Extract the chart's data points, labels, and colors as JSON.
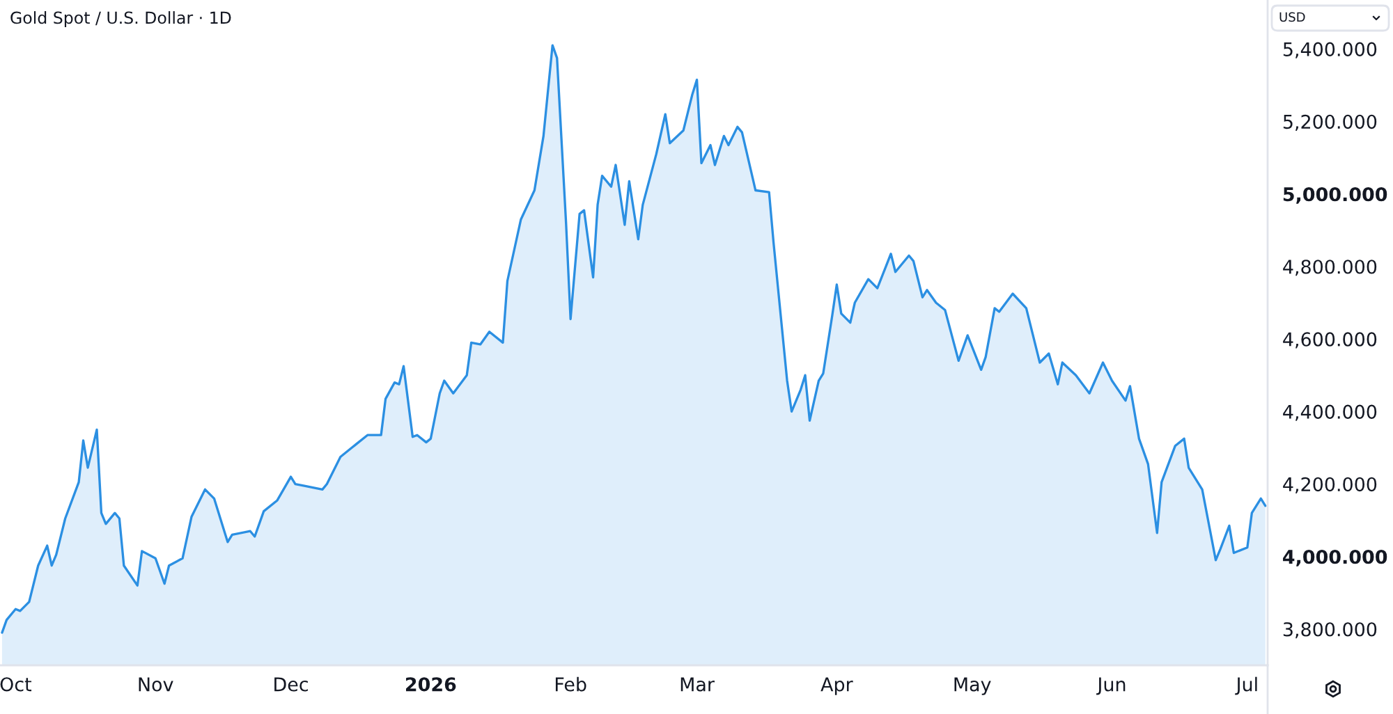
{
  "chart_data": {
    "type": "area",
    "title": "Gold Spot / U.S. Dollar · 1D",
    "ylabel": "USD",
    "color": "#2b8fe2",
    "x": [
      "2025-09-28",
      "2025-09-29",
      "2025-10-01",
      "2025-10-02",
      "2025-10-04",
      "2025-10-06",
      "2025-10-08",
      "2025-10-09",
      "2025-10-10",
      "2025-10-12",
      "2025-10-15",
      "2025-10-16",
      "2025-10-17",
      "2025-10-19",
      "2025-10-20",
      "2025-10-21",
      "2025-10-23",
      "2025-10-24",
      "2025-10-25",
      "2025-10-28",
      "2025-10-29",
      "2025-11-01",
      "2025-11-03",
      "2025-11-04",
      "2025-11-07",
      "2025-11-09",
      "2025-11-12",
      "2025-11-14",
      "2025-11-17",
      "2025-11-18",
      "2025-11-22",
      "2025-11-23",
      "2025-11-25",
      "2025-11-28",
      "2025-12-01",
      "2025-12-02",
      "2025-12-04",
      "2025-12-08",
      "2025-12-09",
      "2025-12-12",
      "2025-12-14",
      "2025-12-18",
      "2025-12-21",
      "2025-12-22",
      "2025-12-24",
      "2025-12-25",
      "2025-12-26",
      "2025-12-28",
      "2025-12-29",
      "2025-12-31",
      "2026-01-01",
      "2026-01-03",
      "2026-01-04",
      "2026-01-06",
      "2026-01-09",
      "2026-01-10",
      "2026-01-12",
      "2026-01-14",
      "2026-01-17",
      "2026-01-18",
      "2026-01-21",
      "2026-01-24",
      "2026-01-26",
      "2026-01-28",
      "2026-01-29",
      "2026-01-31",
      "2026-02-01",
      "2026-02-03",
      "2026-02-04",
      "2026-02-06",
      "2026-02-07",
      "2026-02-08",
      "2026-02-10",
      "2026-02-11",
      "2026-02-13",
      "2026-02-14",
      "2026-02-16",
      "2026-02-17",
      "2026-02-20",
      "2026-02-22",
      "2026-02-23",
      "2026-02-26",
      "2026-02-28",
      "2026-03-01",
      "2026-03-02",
      "2026-03-04",
      "2026-03-05",
      "2026-03-07",
      "2026-03-08",
      "2026-03-10",
      "2026-03-11",
      "2026-03-14",
      "2026-03-17",
      "2026-03-18",
      "2026-03-21",
      "2026-03-22",
      "2026-03-24",
      "2026-03-25",
      "2026-03-26",
      "2026-03-28",
      "2026-03-29",
      "2026-03-31",
      "2026-04-01",
      "2026-04-02",
      "2026-04-04",
      "2026-04-05",
      "2026-04-08",
      "2026-04-10",
      "2026-04-13",
      "2026-04-14",
      "2026-04-17",
      "2026-04-18",
      "2026-04-20",
      "2026-04-21",
      "2026-04-23",
      "2026-04-25",
      "2026-04-28",
      "2026-04-30",
      "2026-05-03",
      "2026-05-04",
      "2026-05-06",
      "2026-05-07",
      "2026-05-10",
      "2026-05-13",
      "2026-05-16",
      "2026-05-18",
      "2026-05-20",
      "2026-05-21",
      "2026-05-24",
      "2026-05-27",
      "2026-05-30",
      "2026-06-01",
      "2026-06-04",
      "2026-06-05",
      "2026-06-07",
      "2026-06-09",
      "2026-06-11",
      "2026-06-12",
      "2026-06-15",
      "2026-06-17",
      "2026-06-18",
      "2026-06-21",
      "2026-06-24",
      "2026-06-25",
      "2026-06-27",
      "2026-06-28",
      "2026-07-01",
      "2026-07-02",
      "2026-07-04",
      "2026-07-05"
    ],
    "values": [
      3790,
      3825,
      3855,
      3850,
      3875,
      3975,
      4030,
      3975,
      4005,
      4105,
      4205,
      4320,
      4245,
      4350,
      4120,
      4090,
      4120,
      4105,
      3975,
      3920,
      4015,
      3995,
      3925,
      3975,
      3995,
      4110,
      4185,
      4160,
      4040,
      4060,
      4070,
      4055,
      4125,
      4155,
      4220,
      4200,
      4195,
      4185,
      4200,
      4275,
      4295,
      4335,
      4335,
      4435,
      4480,
      4475,
      4525,
      4330,
      4335,
      4315,
      4325,
      4450,
      4485,
      4450,
      4500,
      4590,
      4585,
      4620,
      4590,
      4760,
      4930,
      5010,
      5160,
      5410,
      5375,
      4920,
      4655,
      4945,
      4955,
      4770,
      4970,
      5050,
      5020,
      5080,
      4915,
      5035,
      4875,
      4970,
      5110,
      5220,
      5140,
      5175,
      5275,
      5315,
      5085,
      5135,
      5080,
      5160,
      5135,
      5185,
      5170,
      5010,
      5005,
      4865,
      4485,
      4400,
      4460,
      4500,
      4375,
      4485,
      4505,
      4665,
      4750,
      4670,
      4645,
      4700,
      4765,
      4740,
      4835,
      4785,
      4830,
      4815,
      4715,
      4735,
      4700,
      4680,
      4540,
      4610,
      4515,
      4550,
      4685,
      4675,
      4725,
      4685,
      4535,
      4560,
      4475,
      4535,
      4500,
      4450,
      4535,
      4485,
      4430,
      4470,
      4325,
      4255,
      4065,
      4205,
      4305,
      4325,
      4245,
      4185,
      3990,
      4020,
      4085,
      4010,
      4025,
      4120,
      4160,
      4140
    ],
    "xlim": [
      "2025-09-27T13:00",
      "2026-07-05T12:00"
    ],
    "xticks": [
      {
        "value": "2025-10-01",
        "label": "Oct"
      },
      {
        "value": "2025-11-01",
        "label": "Nov"
      },
      {
        "value": "2025-12-01",
        "label": "Dec"
      },
      {
        "value": "2026-01-01",
        "label": "2026"
      },
      {
        "value": "2026-02-01",
        "label": "Feb"
      },
      {
        "value": "2026-03-01",
        "label": "Mar"
      },
      {
        "value": "2026-04-01",
        "label": "Apr"
      },
      {
        "value": "2026-05-01",
        "label": "May"
      },
      {
        "value": "2026-06-01",
        "label": "Jun"
      },
      {
        "value": "2026-07-01",
        "label": "Jul"
      }
    ],
    "ylim": [
      3700,
      5535
    ],
    "yticks": [
      {
        "value": 3800,
        "label": "3,800.000"
      },
      {
        "value": 4000,
        "label": "4,000.000"
      },
      {
        "value": 4200,
        "label": "4,200.000"
      },
      {
        "value": 4400,
        "label": "4,400.000"
      },
      {
        "value": 4600,
        "label": "4,600.000"
      },
      {
        "value": 4800,
        "label": "4,800.000"
      },
      {
        "value": 5000,
        "label": "5,000.000"
      },
      {
        "value": 5200,
        "label": "5,200.000"
      },
      {
        "value": 5400,
        "label": "5,400.000"
      }
    ]
  }
}
